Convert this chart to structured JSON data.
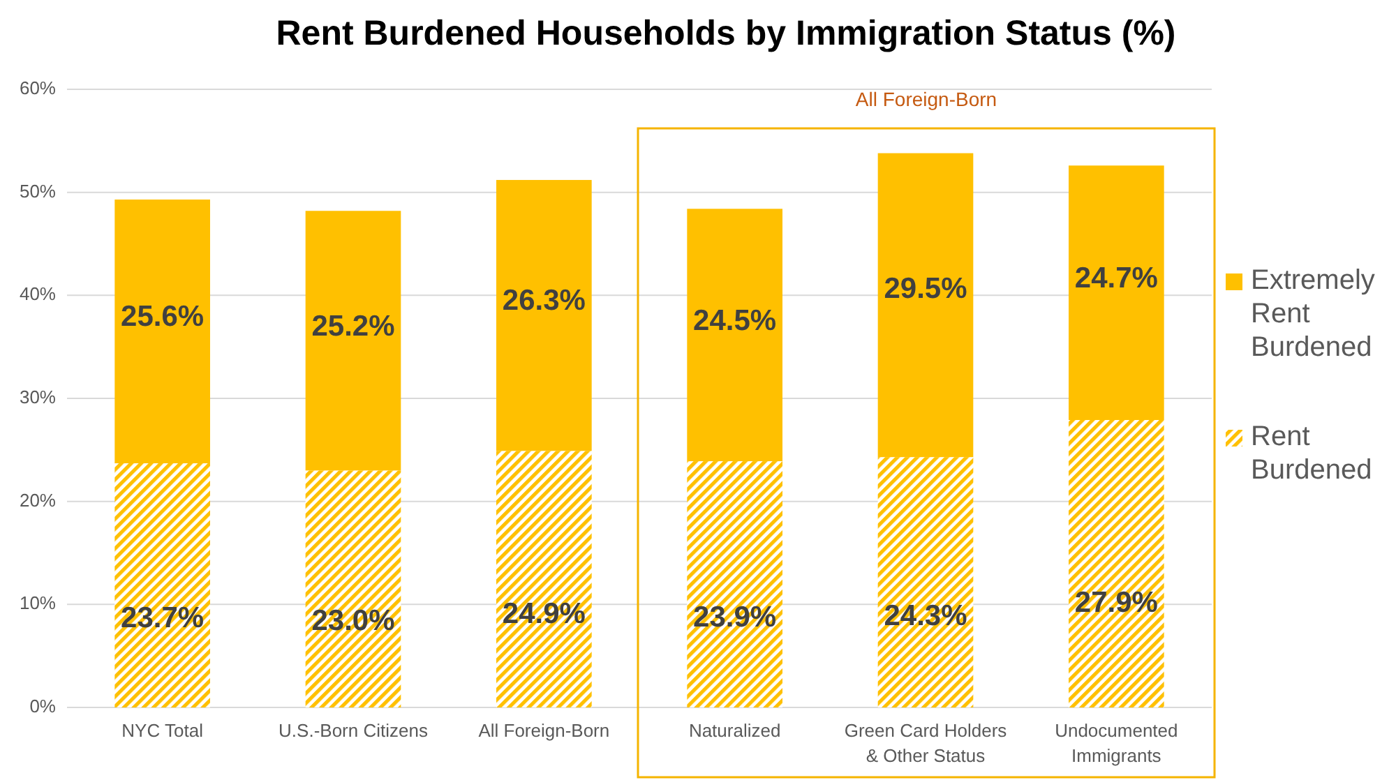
{
  "chart_data": {
    "type": "bar",
    "title": "Rent Burdened Households by Immigration Status (%)",
    "categories": [
      "NYC Total",
      "U.S.-Born Citizens",
      "All Foreign-Born",
      "Naturalized",
      "Green Card Holders & Other Status",
      "Undocumented Immigrants"
    ],
    "stacked": true,
    "series": [
      {
        "name": "Rent Burdened",
        "color": "#ffc000",
        "values": [
          23.7,
          23.0,
          24.9,
          23.9,
          24.3,
          27.9
        ],
        "value_labels": [
          "23.7%",
          "23.0%",
          "24.9%",
          "23.9%",
          "24.3%",
          "27.9%"
        ]
      },
      {
        "name": "Extremely Rent Burdened",
        "color": "#ffc000",
        "values": [
          25.6,
          25.2,
          26.3,
          24.5,
          29.5,
          24.7
        ],
        "value_labels": [
          "25.6%",
          "25.2%",
          "26.3%",
          "24.5%",
          "29.5%",
          "24.7%"
        ]
      }
    ],
    "ylim": [
      0,
      60
    ],
    "yticks": [
      {
        "value": 0,
        "label": "0%"
      },
      {
        "value": 10,
        "label": "10%"
      },
      {
        "value": 20,
        "label": "20%"
      },
      {
        "value": 30,
        "label": "30%"
      },
      {
        "value": 40,
        "label": "40%"
      },
      {
        "value": 50,
        "label": "50%"
      },
      {
        "value": 60,
        "label": "60%"
      }
    ],
    "grid": "y",
    "legend": "right",
    "annotations": [
      "All Foreign-Born"
    ]
  }
}
